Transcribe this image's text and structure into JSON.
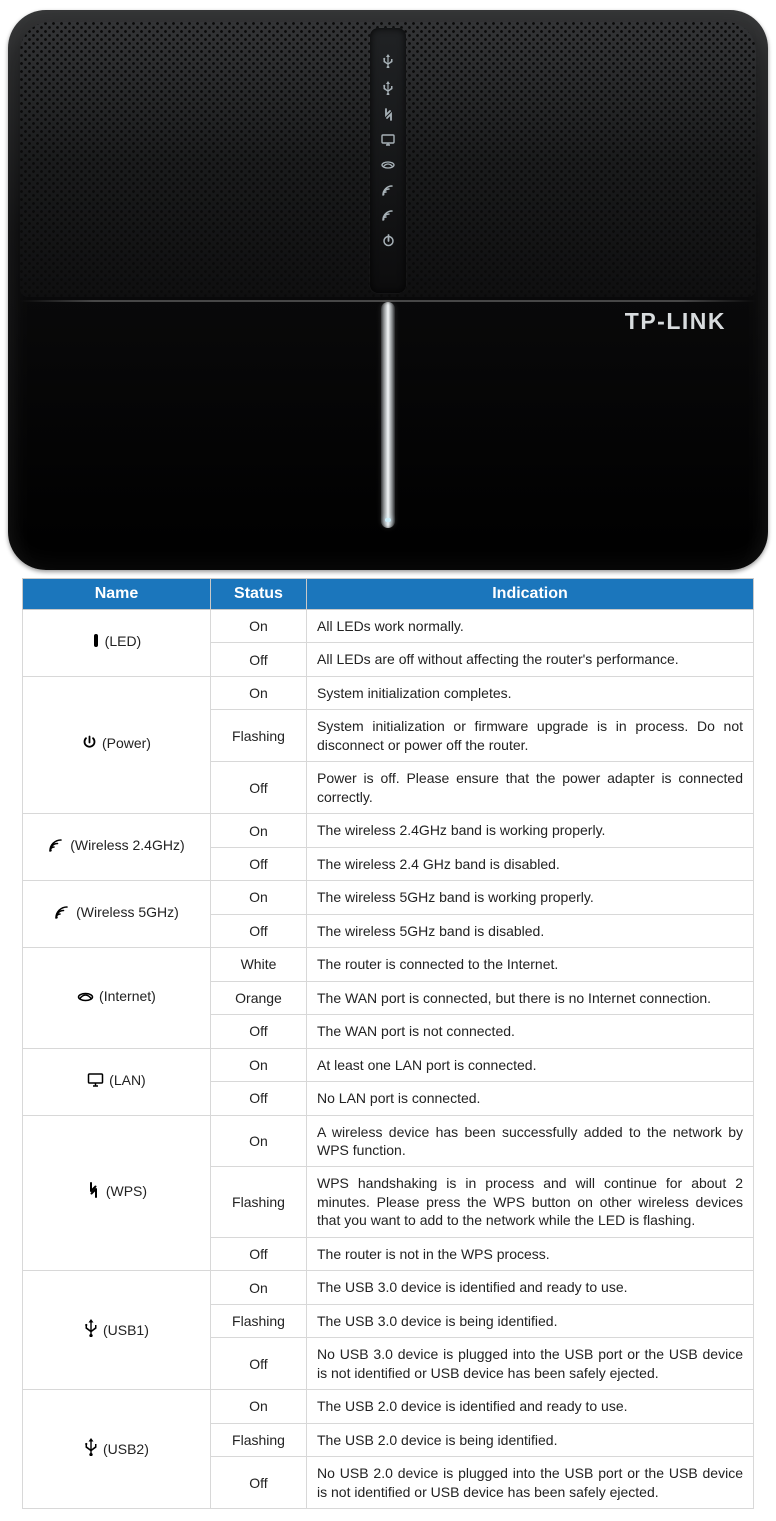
{
  "colors": {
    "header_bg": "#1b76bc",
    "header_fg": "#ffffff",
    "border": "#d8d8d8",
    "text": "#222222"
  },
  "router": {
    "brand": "TP-LINK",
    "leds": [
      "ψ",
      "ψ",
      "⇅",
      "⬚",
      "⚗",
      "◜",
      "◜",
      "⏻"
    ]
  },
  "table": {
    "headers": [
      "Name",
      "Status",
      "Indication"
    ],
    "groups": [
      {
        "icon": "▌",
        "label": "(LED)",
        "rows": [
          {
            "status": "On",
            "ind": "All LEDs work normally."
          },
          {
            "status": "Off",
            "ind": "All LEDs are off without affecting the router's performance."
          }
        ]
      },
      {
        "icon": "⏻",
        "label": "(Power)",
        "rows": [
          {
            "status": "On",
            "ind": "System initialization completes."
          },
          {
            "status": "Flashing",
            "ind": "System initialization or firmware upgrade is in process. Do not disconnect or power off the router.",
            "justify": true
          },
          {
            "status": "Off",
            "ind": "Power is off. Please ensure that the power adapter is connected correctly.",
            "justify": true
          }
        ]
      },
      {
        "icon": "◝)",
        "icon_raw": true,
        "label": "(Wireless 2.4GHz)",
        "rows": [
          {
            "status": "On",
            "ind": "The wireless 2.4GHz band is working properly."
          },
          {
            "status": "Off",
            "ind": "The wireless 2.4 GHz band is disabled."
          }
        ]
      },
      {
        "icon": "◝)",
        "icon_raw": true,
        "label": "(Wireless 5GHz)",
        "rows": [
          {
            "status": "On",
            "ind": "The wireless 5GHz band is working properly."
          },
          {
            "status": "Off",
            "ind": "The wireless 5GHz band is disabled."
          }
        ]
      },
      {
        "icon": "⚗",
        "icon_svg": "internet",
        "label": "(Internet)",
        "rows": [
          {
            "status": "White",
            "ind": "The router is connected to the Internet."
          },
          {
            "status": "Orange",
            "ind": "The WAN port is connected, but there is no Internet connection."
          },
          {
            "status": "Off",
            "ind": "The WAN port is not connected."
          }
        ]
      },
      {
        "icon": "⬚",
        "icon_svg": "lan",
        "label": "(LAN)",
        "rows": [
          {
            "status": "On",
            "ind": "At least one LAN port is connected."
          },
          {
            "status": "Off",
            "ind": "No LAN port is connected."
          }
        ]
      },
      {
        "icon": "⇅",
        "icon_svg": "wps",
        "label": "(WPS)",
        "rows": [
          {
            "status": "On",
            "ind": "A wireless device has been successfully added to the network by WPS function.",
            "justify": true
          },
          {
            "status": "Flashing",
            "ind": "WPS handshaking is in process and will continue for about 2 minutes. Please press the WPS button on other wireless devices that you want to add to the network while the LED is flashing.",
            "justify": true
          },
          {
            "status": "Off",
            "ind": "The router is not in the WPS process."
          }
        ]
      },
      {
        "icon": "ψ",
        "icon_svg": "usb",
        "label": "(USB1)",
        "rows": [
          {
            "status": "On",
            "ind": "The USB 3.0 device is identified and ready to use."
          },
          {
            "status": "Flashing",
            "ind": "The USB 3.0 device is being identified."
          },
          {
            "status": "Off",
            "ind": "No USB 3.0 device is plugged into the USB port or the USB device is not identified or USB device has been safely ejected.",
            "justify": true
          }
        ]
      },
      {
        "icon": "ψ",
        "icon_svg": "usb",
        "label": "(USB2)",
        "rows": [
          {
            "status": "On",
            "ind": "The USB 2.0 device is identified and ready to use."
          },
          {
            "status": "Flashing",
            "ind": "The USB 2.0 device is being identified."
          },
          {
            "status": "Off",
            "ind": "No USB 2.0 device is plugged into the USB port or the USB device is not identified or USB device has been safely ejected.",
            "justify": true
          }
        ]
      }
    ]
  }
}
